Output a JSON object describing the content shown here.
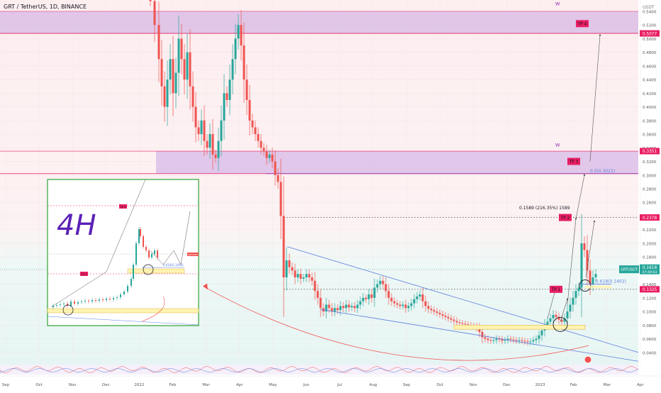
{
  "header": {
    "title": "GRT / TetherUS, 1D, BINANCE",
    "currency": "USDT"
  },
  "chart_data": {
    "type": "candlestick",
    "symbol": "GRTUSDT",
    "y_axis": {
      "min": 0.02,
      "max": 0.57,
      "ticks": [
        "0.5400",
        "0.5200",
        "0.5000",
        "0.4800",
        "0.4600",
        "0.4400",
        "0.4200",
        "0.4000",
        "0.3800",
        "0.3600",
        "0.3400",
        "0.3200",
        "0.3000",
        "0.2800",
        "0.2600",
        "0.2400",
        "0.2200",
        "0.2000",
        "0.1800",
        "0.1600",
        "0.1400",
        "0.1200",
        "0.1000",
        "0.0800",
        "0.0600",
        "0.0400"
      ]
    },
    "x_axis": {
      "labels": [
        "Sep",
        "Oct",
        "Nov",
        "Dec",
        "2022",
        "Feb",
        "Mar",
        "Apr",
        "May",
        "Jun",
        "Jul",
        "Aug",
        "Sep",
        "Oct",
        "Nov",
        "Dec",
        "2023",
        "Feb",
        "Mar",
        "Apr"
      ]
    },
    "price_badges": [
      {
        "label": "0.5077",
        "value": 0.5077,
        "color": "#e91e63"
      },
      {
        "label": "0.3351",
        "value": 0.3351,
        "color": "#e91e63"
      },
      {
        "label": "0.2378",
        "value": 0.2378,
        "color": "#e91e63"
      },
      {
        "label": "0.1325",
        "value": 0.1325,
        "color": "#e91e63"
      }
    ],
    "last_price": {
      "symbol": "GRTUSDT",
      "value": 0.1618,
      "label": "0.1618",
      "countdown": "07:49:03",
      "color": "#26a69a"
    },
    "targets": [
      {
        "label": "TP 1",
        "value": 0.1325
      },
      {
        "label": "TP 2",
        "value": 0.2378
      },
      {
        "label": "TP 3",
        "value": 0.3351
      },
      {
        "label": "TP 4",
        "value": 0.5077
      }
    ],
    "zones": [
      {
        "top": 0.54,
        "bottom": 0.5077
      },
      {
        "top": 0.3351,
        "bottom": 0.3021
      }
    ],
    "annotations": {
      "wave_label": "W",
      "fib_05": "0.5(0.3021)",
      "fib_0618": "0.618(0.1402)",
      "measure": "0.1589 (216.35%) 1589",
      "inset_title": "4H",
      "inset_tag": "TP 2",
      "inset_tag2": "TP 1",
      "inset_fib": "0.618(0.1406)",
      "inset_price": "GRTUSDT"
    },
    "colors": {
      "up": "#26a69a",
      "down": "#ef5350",
      "zone": "#d7b8e6",
      "line": "#e91e63",
      "trend": "#5b7fde"
    }
  }
}
